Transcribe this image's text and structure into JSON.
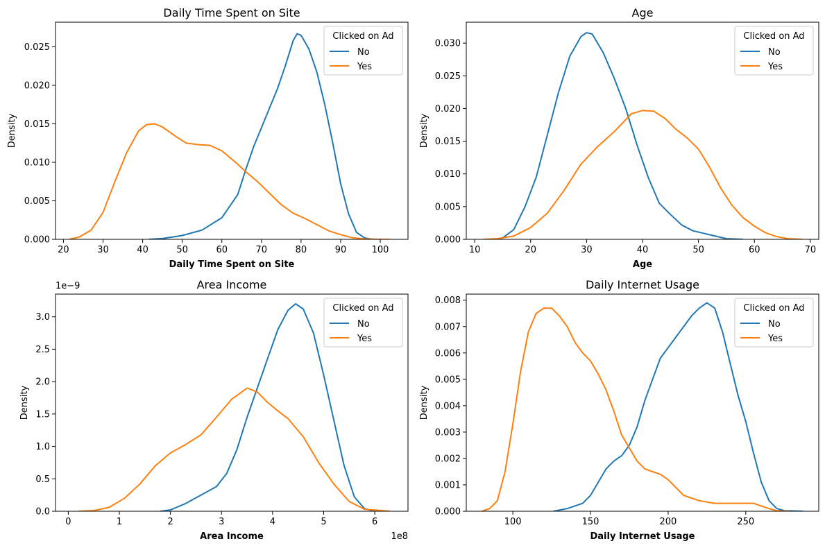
{
  "colors": {
    "No": "#1f77b4",
    "Yes": "#ff7f0e"
  },
  "chart_data": [
    {
      "type": "line",
      "title": "Daily Time Spent on Site",
      "xlabel": "Daily Time Spent on Site",
      "ylabel": "Density",
      "xlim": [
        18,
        107
      ],
      "ylim": [
        0,
        0.0282
      ],
      "xticks": [
        20,
        30,
        40,
        50,
        60,
        70,
        80,
        90,
        100
      ],
      "xtick_labels": [
        "20",
        "30",
        "40",
        "50",
        "60",
        "70",
        "80",
        "90",
        "100"
      ],
      "yticks": [
        0,
        0.005,
        0.01,
        0.015,
        0.02,
        0.025
      ],
      "ytick_labels": [
        "0.000",
        "0.005",
        "0.010",
        "0.015",
        "0.020",
        "0.025"
      ],
      "offset_label": "",
      "legend": {
        "title": "Clicked on Ad",
        "entries": [
          "No",
          "Yes"
        ],
        "location": "upper right"
      },
      "series": [
        {
          "name": "No",
          "points": [
            [
              41.5,
              0
            ],
            [
              45,
              0.0001
            ],
            [
              50,
              0.0005
            ],
            [
              55,
              0.0012
            ],
            [
              60,
              0.0028
            ],
            [
              64,
              0.0058
            ],
            [
              66,
              0.009
            ],
            [
              68,
              0.012
            ],
            [
              70,
              0.0145
            ],
            [
              72,
              0.017
            ],
            [
              74,
              0.0195
            ],
            [
              76,
              0.0225
            ],
            [
              78,
              0.0258
            ],
            [
              79,
              0.0267
            ],
            [
              80,
              0.0265
            ],
            [
              82,
              0.0247
            ],
            [
              84,
              0.0217
            ],
            [
              86,
              0.0175
            ],
            [
              88,
              0.0125
            ],
            [
              90,
              0.0072
            ],
            [
              92,
              0.0033
            ],
            [
              94,
              0.0009
            ],
            [
              96,
              0.0002
            ],
            [
              98,
              0
            ]
          ]
        },
        {
          "name": "Yes",
          "points": [
            [
              21.5,
              0
            ],
            [
              24,
              0.0003
            ],
            [
              27,
              0.0012
            ],
            [
              30,
              0.0035
            ],
            [
              33,
              0.0075
            ],
            [
              36,
              0.0113
            ],
            [
              39,
              0.0141
            ],
            [
              41,
              0.0149
            ],
            [
              43,
              0.015
            ],
            [
              45,
              0.0146
            ],
            [
              48,
              0.0135
            ],
            [
              51,
              0.0125
            ],
            [
              54,
              0.0123
            ],
            [
              57,
              0.0122
            ],
            [
              60,
              0.0115
            ],
            [
              63,
              0.0102
            ],
            [
              66,
              0.0088
            ],
            [
              69,
              0.0075
            ],
            [
              72,
              0.006
            ],
            [
              75,
              0.0045
            ],
            [
              78,
              0.0034
            ],
            [
              81,
              0.0027
            ],
            [
              84,
              0.0019
            ],
            [
              87,
              0.0011
            ],
            [
              90,
              0.0006
            ],
            [
              93,
              0.0002
            ],
            [
              96,
              5e-05
            ],
            [
              100,
              0
            ],
            [
              102.5,
              0
            ]
          ]
        }
      ]
    },
    {
      "type": "line",
      "title": "Age",
      "xlabel": "Age",
      "ylabel": "Density",
      "xlim": [
        8.5,
        71.5
      ],
      "ylim": [
        0,
        0.0332
      ],
      "xticks": [
        10,
        20,
        30,
        40,
        50,
        60,
        70
      ],
      "xtick_labels": [
        "10",
        "20",
        "30",
        "40",
        "50",
        "60",
        "70"
      ],
      "yticks": [
        0,
        0.005,
        0.01,
        0.015,
        0.02,
        0.025,
        0.03
      ],
      "ytick_labels": [
        "0.000",
        "0.005",
        "0.010",
        "0.015",
        "0.020",
        "0.025",
        "0.030"
      ],
      "offset_label": "",
      "legend": {
        "title": "Clicked on Ad",
        "entries": [
          "No",
          "Yes"
        ],
        "location": "upper right"
      },
      "series": [
        {
          "name": "No",
          "points": [
            [
              13.5,
              0
            ],
            [
              15,
              0.0002
            ],
            [
              17,
              0.0015
            ],
            [
              19,
              0.005
            ],
            [
              21,
              0.0095
            ],
            [
              23,
              0.016
            ],
            [
              25,
              0.0225
            ],
            [
              27,
              0.028
            ],
            [
              29,
              0.031
            ],
            [
              30,
              0.0316
            ],
            [
              31,
              0.0314
            ],
            [
              33,
              0.0285
            ],
            [
              35,
              0.0245
            ],
            [
              37,
              0.02
            ],
            [
              39,
              0.0145
            ],
            [
              41,
              0.0095
            ],
            [
              43,
              0.0055
            ],
            [
              45,
              0.0038
            ],
            [
              47,
              0.0022
            ],
            [
              49,
              0.0013
            ],
            [
              52,
              0.0007
            ],
            [
              55,
              0.0001
            ],
            [
              58,
              0
            ]
          ]
        },
        {
          "name": "Yes",
          "points": [
            [
              11.5,
              0
            ],
            [
              14,
              0.0001
            ],
            [
              17,
              0.0005
            ],
            [
              20,
              0.0018
            ],
            [
              23,
              0.004
            ],
            [
              26,
              0.0075
            ],
            [
              29,
              0.0115
            ],
            [
              32,
              0.0142
            ],
            [
              35,
              0.0165
            ],
            [
              38,
              0.0192
            ],
            [
              40,
              0.0197
            ],
            [
              42,
              0.0196
            ],
            [
              44,
              0.0185
            ],
            [
              46,
              0.0168
            ],
            [
              48,
              0.0155
            ],
            [
              50,
              0.0138
            ],
            [
              52,
              0.011
            ],
            [
              54,
              0.0078
            ],
            [
              56,
              0.0052
            ],
            [
              58,
              0.0033
            ],
            [
              60,
              0.002
            ],
            [
              62,
              0.001
            ],
            [
              64,
              0.0004
            ],
            [
              66,
              0.0001
            ],
            [
              68.5,
              0
            ]
          ]
        }
      ]
    },
    {
      "type": "line",
      "title": "Area Income",
      "xlabel": "Area Income",
      "ylabel": "Density",
      "xlim": [
        -0.25,
        6.65
      ],
      "ylim": [
        0,
        3.35
      ],
      "xticks": [
        0,
        1,
        2,
        3,
        4,
        5,
        6
      ],
      "xtick_labels": [
        "0",
        "1",
        "2",
        "3",
        "4",
        "5",
        "6"
      ],
      "yticks": [
        0,
        0.5,
        1.0,
        1.5,
        2.0,
        2.5,
        3.0
      ],
      "ytick_labels": [
        "0.0",
        "0.5",
        "1.0",
        "1.5",
        "2.0",
        "2.5",
        "3.0"
      ],
      "offset_label": "1e−9",
      "x_offset_label": "1e8",
      "legend": {
        "title": "Clicked on Ad",
        "entries": [
          "No",
          "Yes"
        ],
        "location": "upper right"
      },
      "series": [
        {
          "name": "No",
          "points": [
            [
              1.8,
              0
            ],
            [
              2.0,
              0.02
            ],
            [
              2.3,
              0.12
            ],
            [
              2.6,
              0.25
            ],
            [
              2.9,
              0.38
            ],
            [
              3.1,
              0.58
            ],
            [
              3.3,
              0.95
            ],
            [
              3.5,
              1.45
            ],
            [
              3.7,
              1.9
            ],
            [
              3.9,
              2.35
            ],
            [
              4.1,
              2.8
            ],
            [
              4.3,
              3.1
            ],
            [
              4.45,
              3.2
            ],
            [
              4.6,
              3.12
            ],
            [
              4.8,
              2.75
            ],
            [
              5.0,
              2.1
            ],
            [
              5.2,
              1.4
            ],
            [
              5.4,
              0.7
            ],
            [
              5.6,
              0.22
            ],
            [
              5.8,
              0.04
            ],
            [
              6.0,
              0
            ]
          ]
        },
        {
          "name": "Yes",
          "points": [
            [
              0.2,
              0
            ],
            [
              0.5,
              0.01
            ],
            [
              0.8,
              0.06
            ],
            [
              1.1,
              0.2
            ],
            [
              1.4,
              0.42
            ],
            [
              1.7,
              0.7
            ],
            [
              2.0,
              0.9
            ],
            [
              2.3,
              1.03
            ],
            [
              2.6,
              1.18
            ],
            [
              2.9,
              1.45
            ],
            [
              3.2,
              1.73
            ],
            [
              3.5,
              1.9
            ],
            [
              3.7,
              1.84
            ],
            [
              3.9,
              1.68
            ],
            [
              4.1,
              1.55
            ],
            [
              4.3,
              1.43
            ],
            [
              4.6,
              1.15
            ],
            [
              4.9,
              0.75
            ],
            [
              5.2,
              0.42
            ],
            [
              5.5,
              0.15
            ],
            [
              5.8,
              0.03
            ],
            [
              6.3,
              0
            ]
          ]
        }
      ]
    },
    {
      "type": "line",
      "title": "Daily Internet Usage",
      "xlabel": "Daily Internet Usage",
      "ylabel": "Density",
      "xlim": [
        70,
        297
      ],
      "ylim": [
        0,
        0.00823
      ],
      "xticks": [
        100,
        150,
        200,
        250
      ],
      "xtick_labels": [
        "100",
        "150",
        "200",
        "250"
      ],
      "yticks": [
        0,
        0.001,
        0.002,
        0.003,
        0.004,
        0.005,
        0.006,
        0.007,
        0.008
      ],
      "ytick_labels": [
        "0.000",
        "0.001",
        "0.002",
        "0.003",
        "0.004",
        "0.005",
        "0.006",
        "0.007",
        "0.008"
      ],
      "offset_label": "",
      "legend": {
        "title": "Clicked on Ad",
        "entries": [
          "No",
          "Yes"
        ],
        "location": "upper right"
      },
      "series": [
        {
          "name": "No",
          "points": [
            [
              126,
              0
            ],
            [
              135,
              0.0001
            ],
            [
              145,
              0.0003
            ],
            [
              150,
              0.0006
            ],
            [
              155,
              0.0011
            ],
            [
              160,
              0.0016
            ],
            [
              165,
              0.0019
            ],
            [
              170,
              0.0021
            ],
            [
              175,
              0.0025
            ],
            [
              180,
              0.0032
            ],
            [
              185,
              0.0042
            ],
            [
              190,
              0.005
            ],
            [
              195,
              0.0058
            ],
            [
              200,
              0.0062
            ],
            [
              205,
              0.0066
            ],
            [
              210,
              0.007
            ],
            [
              215,
              0.0074
            ],
            [
              220,
              0.0077
            ],
            [
              225,
              0.0079
            ],
            [
              230,
              0.0077
            ],
            [
              235,
              0.0068
            ],
            [
              240,
              0.0056
            ],
            [
              245,
              0.0044
            ],
            [
              250,
              0.0034
            ],
            [
              255,
              0.0022
            ],
            [
              260,
              0.0011
            ],
            [
              265,
              0.0004
            ],
            [
              270,
              0.0001
            ],
            [
              275,
              2e-05
            ],
            [
              287,
              0
            ]
          ]
        },
        {
          "name": "Yes",
          "points": [
            [
              80,
              0
            ],
            [
              85,
              0.0001
            ],
            [
              90,
              0.0004
            ],
            [
              95,
              0.0015
            ],
            [
              100,
              0.0033
            ],
            [
              105,
              0.0053
            ],
            [
              110,
              0.0068
            ],
            [
              115,
              0.0075
            ],
            [
              120,
              0.0077
            ],
            [
              125,
              0.0077
            ],
            [
              130,
              0.0074
            ],
            [
              135,
              0.007
            ],
            [
              140,
              0.0064
            ],
            [
              145,
              0.006
            ],
            [
              150,
              0.0057
            ],
            [
              155,
              0.0052
            ],
            [
              160,
              0.0046
            ],
            [
              165,
              0.0038
            ],
            [
              170,
              0.0029
            ],
            [
              175,
              0.0024
            ],
            [
              180,
              0.0019
            ],
            [
              185,
              0.0016
            ],
            [
              190,
              0.0015
            ],
            [
              195,
              0.0014
            ],
            [
              200,
              0.0012
            ],
            [
              205,
              0.0009
            ],
            [
              210,
              0.0006
            ],
            [
              215,
              0.0005
            ],
            [
              220,
              0.0004
            ],
            [
              230,
              0.0003
            ],
            [
              240,
              0.0003
            ],
            [
              250,
              0.0003
            ],
            [
              255,
              0.0003
            ],
            [
              260,
              0.0002
            ],
            [
              265,
              0.0001
            ],
            [
              270,
              2e-05
            ],
            [
              278,
              0
            ]
          ]
        }
      ]
    }
  ]
}
